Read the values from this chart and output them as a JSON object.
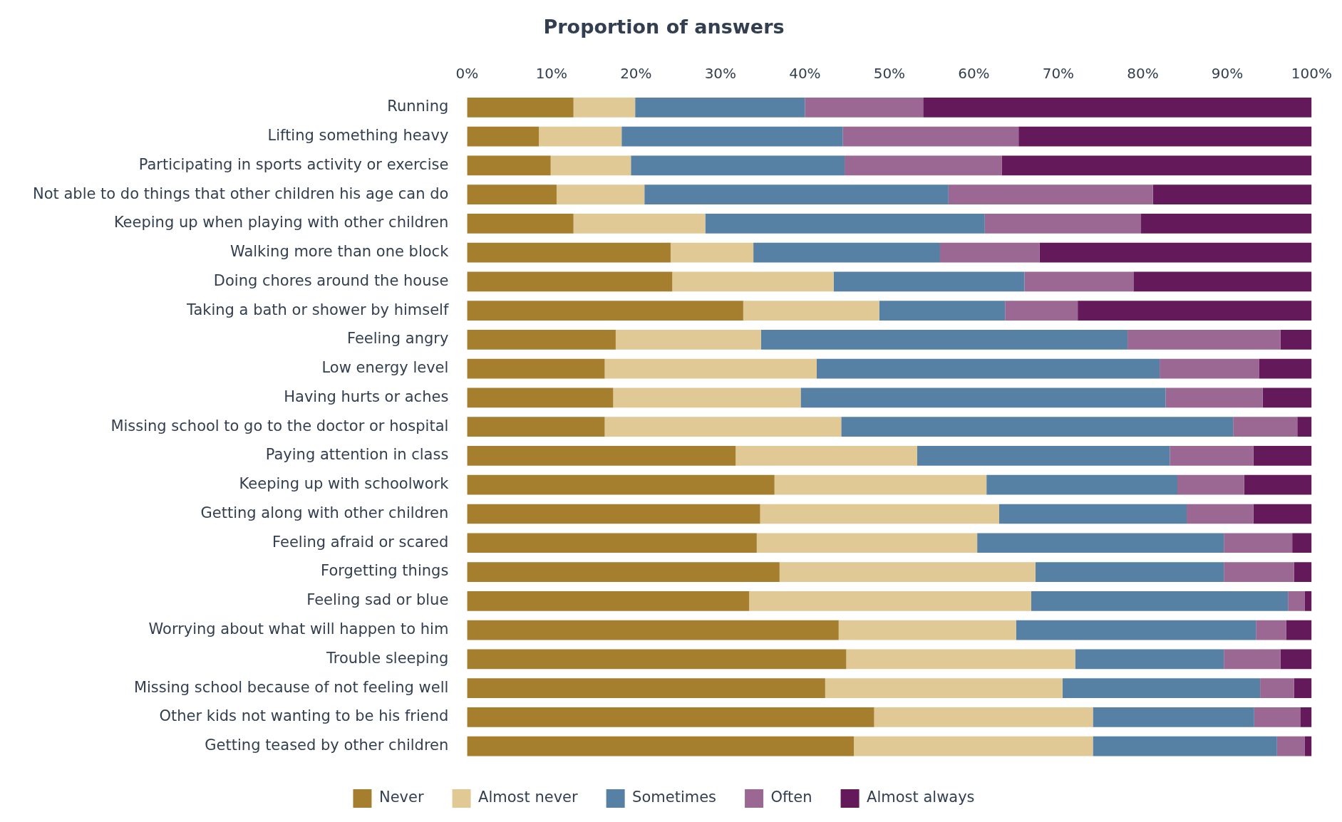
{
  "chart_data": {
    "type": "bar",
    "orientation": "horizontal",
    "stacked": true,
    "title": "Proportion of answers",
    "categories": [
      "Running",
      "Lifting something heavy",
      "Participating in sports activity or exercise",
      "Not able to do things that other children his age can do",
      "Keeping up when playing with other children",
      "Walking more than one block",
      "Doing chores around the house",
      "Taking a bath or shower by himself",
      "Feeling angry",
      "Low energy level",
      "Having hurts or aches",
      "Missing school to go to the doctor or hospital",
      "Paying attention in class",
      "Keeping up with schoolwork",
      "Getting along with other children",
      "Feeling afraid or scared",
      "Forgetting things",
      "Feeling sad or blue",
      "Worrying about what will happen to him",
      "Trouble sleeping",
      "Missing school because of not feeling well",
      "Other kids not wanting to be his friend",
      "Getting teased by other children"
    ],
    "series": [
      {
        "name": "Never",
        "color": "#a57f2e",
        "values": [
          12.6,
          8.5,
          9.9,
          10.6,
          12.6,
          24.1,
          24.3,
          32.7,
          17.6,
          16.3,
          17.3,
          16.3,
          31.8,
          36.4,
          34.7,
          34.3,
          37.0,
          33.4,
          44.0,
          44.9,
          42.4,
          48.2,
          45.8
        ]
      },
      {
        "name": "Almost never",
        "color": "#e1c995",
        "values": [
          7.3,
          9.8,
          9.5,
          10.4,
          15.6,
          9.8,
          19.1,
          16.1,
          17.2,
          25.1,
          22.2,
          28.0,
          21.5,
          25.1,
          28.3,
          26.1,
          30.3,
          33.4,
          21.0,
          27.1,
          28.1,
          25.9,
          28.3
        ]
      },
      {
        "name": "Sometimes",
        "color": "#5681a4",
        "values": [
          20.1,
          26.2,
          25.3,
          36.0,
          33.1,
          22.1,
          22.6,
          14.9,
          43.4,
          40.6,
          43.2,
          46.4,
          29.9,
          22.6,
          22.2,
          29.2,
          22.3,
          30.4,
          28.4,
          17.6,
          23.4,
          19.1,
          21.8
        ]
      },
      {
        "name": "Often",
        "color": "#9b6793",
        "values": [
          14.0,
          20.8,
          18.6,
          24.2,
          18.5,
          11.8,
          12.9,
          8.6,
          18.1,
          11.8,
          11.5,
          7.6,
          9.9,
          7.9,
          7.9,
          8.1,
          8.3,
          2.0,
          3.6,
          6.7,
          4.0,
          5.5,
          3.3
        ]
      },
      {
        "name": "Almost always",
        "color": "#63195a",
        "values": [
          46.0,
          34.7,
          36.7,
          18.8,
          20.2,
          32.2,
          21.1,
          27.7,
          3.7,
          6.2,
          5.8,
          1.7,
          6.9,
          8.0,
          6.9,
          2.3,
          2.1,
          0.8,
          3.0,
          3.7,
          2.1,
          1.3,
          0.8
        ]
      }
    ],
    "xlim": [
      0,
      100
    ],
    "xticks": [
      {
        "value": 0,
        "label": "0%"
      },
      {
        "value": 10,
        "label": "10%"
      },
      {
        "value": 20,
        "label": "20%"
      },
      {
        "value": 30,
        "label": "30%"
      },
      {
        "value": 40,
        "label": "40%"
      },
      {
        "value": 50,
        "label": "50%"
      },
      {
        "value": 60,
        "label": "60%"
      },
      {
        "value": 70,
        "label": "70%"
      },
      {
        "value": 80,
        "label": "80%"
      },
      {
        "value": 90,
        "label": "90%"
      },
      {
        "value": 100,
        "label": "100%"
      }
    ],
    "grid": false,
    "legend": "bottom"
  }
}
